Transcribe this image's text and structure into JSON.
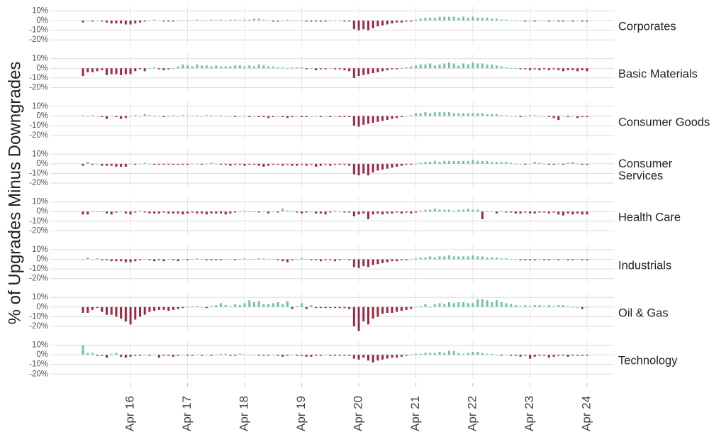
{
  "chart_data": {
    "type": "bar",
    "ylabel": "% of Upgrades Minus Downgrades",
    "xlim": [
      0,
      106
    ],
    "xticks": [
      {
        "value": 10,
        "label": "Apr 16"
      },
      {
        "value": 22,
        "label": "Apr 17"
      },
      {
        "value": 34,
        "label": "Apr 18"
      },
      {
        "value": 46,
        "label": "Apr 19"
      },
      {
        "value": 58,
        "label": "Apr 20"
      },
      {
        "value": 70,
        "label": "Apr 21"
      },
      {
        "value": 82,
        "label": "Apr 22"
      },
      {
        "value": 94,
        "label": "Apr 23"
      },
      {
        "value": 106,
        "label": "Apr 24"
      }
    ],
    "ylim": [
      -25,
      15
    ],
    "yticks": [
      {
        "value": 10,
        "label": "10%"
      },
      {
        "value": 0,
        "label": "0%"
      },
      {
        "value": -10,
        "label": "-10%"
      },
      {
        "value": -20,
        "label": "-20%"
      }
    ],
    "grid": true,
    "pos_color": "#74c2a6",
    "neg_color": "#9b2743",
    "series": [
      {
        "name": "Corporates",
        "values": [
          -2,
          0,
          -1,
          0,
          -1,
          -2,
          -3,
          -3,
          -3,
          -4,
          -4,
          -3,
          -2,
          -1,
          0,
          1,
          0,
          -1,
          -1,
          -1,
          0,
          0,
          0,
          0,
          1,
          0,
          0,
          1,
          0,
          1,
          0,
          1,
          1,
          0,
          1,
          1,
          2,
          2,
          1,
          0,
          -1,
          -1,
          0,
          1,
          0,
          0,
          0,
          -1,
          -1,
          -1,
          -1,
          -1,
          0,
          0,
          0,
          -1,
          -1,
          -9,
          -10,
          -9,
          -10,
          -8,
          -6,
          -5,
          -4,
          -3,
          -2,
          -2,
          -1,
          -1,
          1,
          2,
          3,
          3,
          3,
          4,
          4,
          4,
          4,
          3,
          4,
          3,
          4,
          3,
          3,
          3,
          2,
          2,
          1,
          1,
          0,
          0,
          0,
          -1,
          0,
          -1,
          0,
          0,
          -1,
          0,
          -1,
          -1,
          0,
          -1,
          0,
          -1,
          -1
        ]
      },
      {
        "name": "Basic Materials",
        "values": [
          -8,
          -4,
          -4,
          -3,
          -2,
          -7,
          -6,
          -6,
          -7,
          -6,
          -6,
          -3,
          -1,
          -3,
          0,
          1,
          -1,
          -2,
          -1,
          0,
          2,
          4,
          3,
          2,
          4,
          3,
          3,
          2,
          3,
          2,
          2,
          2,
          3,
          3,
          2,
          3,
          2,
          4,
          3,
          2,
          2,
          1,
          1,
          0,
          1,
          1,
          1,
          -1,
          0,
          -2,
          -1,
          -1,
          0,
          -1,
          -1,
          -2,
          -3,
          -10,
          -8,
          -7,
          -6,
          -5,
          -4,
          -3,
          -2,
          -1,
          -1,
          0,
          1,
          2,
          3,
          4,
          4,
          5,
          3,
          4,
          5,
          6,
          5,
          3,
          5,
          4,
          6,
          5,
          5,
          4,
          4,
          3,
          2,
          1,
          0,
          0,
          -1,
          -1,
          -2,
          -1,
          -2,
          -1,
          -2,
          -1,
          -2,
          -3,
          -2,
          -2,
          -3,
          -2,
          -3
        ]
      },
      {
        "name": "Consumer Goods",
        "values": [
          1,
          0,
          1,
          0,
          -1,
          -3,
          0,
          -1,
          -3,
          -2,
          0,
          1,
          0,
          2,
          1,
          0,
          0,
          -1,
          0,
          1,
          0,
          1,
          0,
          0,
          1,
          0,
          1,
          1,
          0,
          1,
          0,
          0,
          -1,
          0,
          0,
          -1,
          0,
          -1,
          -1,
          -2,
          -1,
          0,
          -1,
          -2,
          -1,
          0,
          -1,
          -1,
          0,
          0,
          -1,
          0,
          -1,
          0,
          -1,
          -1,
          -1,
          -10,
          -11,
          -9,
          -8,
          -7,
          -6,
          -5,
          -4,
          -3,
          -2,
          -1,
          0,
          1,
          3,
          3,
          4,
          3,
          4,
          4,
          4,
          4,
          3,
          3,
          3,
          3,
          3,
          3,
          3,
          2,
          2,
          2,
          1,
          1,
          0,
          0,
          -1,
          0,
          1,
          1,
          0,
          0,
          -1,
          -2,
          -4,
          0,
          -1,
          0,
          -2,
          -1,
          -1
        ]
      },
      {
        "name": "Consumer Services",
        "values": [
          -2,
          2,
          -1,
          0,
          -2,
          -2,
          -2,
          -3,
          -3,
          -3,
          0,
          -1,
          0,
          1,
          0,
          -1,
          -1,
          -1,
          -1,
          -1,
          -1,
          -1,
          -1,
          0,
          0,
          -1,
          0,
          1,
          0,
          -1,
          -1,
          -2,
          -1,
          -1,
          -2,
          -1,
          -1,
          -2,
          -3,
          -2,
          -1,
          -1,
          -2,
          -1,
          -2,
          -2,
          -1,
          -2,
          -1,
          -3,
          -2,
          -1,
          -2,
          -1,
          -1,
          -1,
          -2,
          -11,
          -12,
          -10,
          -12,
          -9,
          -7,
          -6,
          -5,
          -4,
          -3,
          -2,
          -1,
          -1,
          0,
          1,
          2,
          2,
          3,
          2,
          3,
          3,
          3,
          3,
          3,
          3,
          4,
          3,
          3,
          3,
          2,
          2,
          2,
          2,
          1,
          0,
          0,
          -1,
          0,
          2,
          1,
          0,
          -1,
          -1,
          0,
          -1,
          1,
          2,
          0,
          -1,
          -1
        ]
      },
      {
        "name": "Health Care",
        "values": [
          -3,
          -3,
          0,
          0,
          0,
          -2,
          -3,
          -1,
          0,
          -2,
          -3,
          -1,
          1,
          -1,
          -2,
          -2,
          -2,
          -1,
          -2,
          -2,
          -2,
          -3,
          -2,
          -1,
          -2,
          -2,
          -3,
          -2,
          -2,
          -2,
          -3,
          -2,
          -1,
          0,
          1,
          0,
          0,
          -1,
          0,
          -2,
          0,
          -1,
          3,
          1,
          0,
          -1,
          -2,
          -1,
          0,
          -2,
          -2,
          -3,
          -1,
          1,
          0,
          -1,
          -1,
          -5,
          -3,
          -2,
          -8,
          -3,
          -2,
          -3,
          -2,
          -2,
          -1,
          -2,
          -1,
          -2,
          -1,
          1,
          2,
          2,
          3,
          2,
          2,
          2,
          1,
          2,
          2,
          3,
          2,
          2,
          -8,
          0,
          0,
          -2,
          0,
          -1,
          -1,
          -2,
          -2,
          -1,
          -2,
          -2,
          -1,
          -1,
          -2,
          -1,
          -3,
          -4,
          -2,
          -3,
          -2,
          -3,
          -3
        ]
      },
      {
        "name": "Industrials",
        "values": [
          0,
          2,
          0,
          1,
          -1,
          -1,
          -2,
          -2,
          -2,
          -3,
          -3,
          -2,
          -1,
          0,
          -1,
          -2,
          -1,
          -2,
          0,
          -1,
          -2,
          0,
          -1,
          0,
          1,
          0,
          -1,
          -1,
          -1,
          -1,
          0,
          0,
          -1,
          0,
          1,
          0,
          0,
          1,
          1,
          0,
          0,
          -1,
          -2,
          -3,
          -1,
          0,
          1,
          0,
          -1,
          -1,
          -2,
          -1,
          -1,
          -2,
          -1,
          0,
          -1,
          -8,
          -9,
          -7,
          -8,
          -6,
          -5,
          -4,
          -3,
          -2,
          -2,
          -1,
          -1,
          0,
          1,
          2,
          2,
          3,
          2,
          3,
          3,
          4,
          3,
          3,
          3,
          3,
          4,
          3,
          3,
          2,
          2,
          2,
          1,
          1,
          0,
          0,
          -1,
          -1,
          -1,
          -1,
          0,
          -1,
          -1,
          0,
          -1,
          0,
          -1,
          -1,
          0,
          -1,
          -1
        ]
      },
      {
        "name": "Oil & Gas",
        "values": [
          -6,
          -6,
          -3,
          -1,
          -5,
          -8,
          -8,
          -10,
          -12,
          -15,
          -18,
          -13,
          -10,
          -8,
          -5,
          -4,
          -3,
          -3,
          -4,
          -3,
          -2,
          -1,
          0,
          1,
          1,
          0,
          -1,
          1,
          2,
          4,
          2,
          1,
          3,
          2,
          4,
          7,
          5,
          6,
          3,
          3,
          4,
          5,
          3,
          6,
          -2,
          1,
          4,
          -2,
          2,
          -1,
          -1,
          -1,
          -1,
          -1,
          -1,
          -1,
          -2,
          -20,
          -25,
          -15,
          -18,
          -12,
          -10,
          -7,
          -6,
          -6,
          -5,
          -4,
          -3,
          -2,
          0,
          1,
          3,
          0,
          3,
          4,
          3,
          5,
          4,
          5,
          5,
          4,
          4,
          8,
          8,
          7,
          5,
          7,
          5,
          4,
          3,
          2,
          1,
          2,
          1,
          2,
          2,
          1,
          2,
          1,
          2,
          2,
          1,
          0,
          0,
          -2,
          0
        ]
      },
      {
        "name": "Technology",
        "values": [
          10,
          2,
          2,
          -1,
          -1,
          -3,
          1,
          2,
          -2,
          -3,
          -2,
          -1,
          -1,
          0,
          -1,
          0,
          -3,
          -1,
          -1,
          -2,
          -1,
          0,
          -1,
          -1,
          0,
          -1,
          0,
          -1,
          0,
          1,
          1,
          -1,
          -1,
          1,
          0,
          0,
          0,
          -1,
          -1,
          -1,
          0,
          -1,
          -2,
          -1,
          0,
          -1,
          -1,
          -2,
          -2,
          -1,
          -1,
          0,
          -1,
          -1,
          -1,
          -1,
          -1,
          -4,
          -5,
          -3,
          -6,
          -8,
          -6,
          -5,
          -4,
          -3,
          -3,
          -2,
          -1,
          0,
          1,
          1,
          2,
          2,
          2,
          3,
          2,
          4,
          4,
          2,
          1,
          2,
          3,
          3,
          2,
          1,
          1,
          0,
          -1,
          0,
          -1,
          -1,
          -2,
          -1,
          -4,
          -2,
          -1,
          -1,
          -3,
          -2,
          -1,
          -1,
          -2,
          -1,
          -1,
          -1,
          -1
        ]
      }
    ]
  }
}
